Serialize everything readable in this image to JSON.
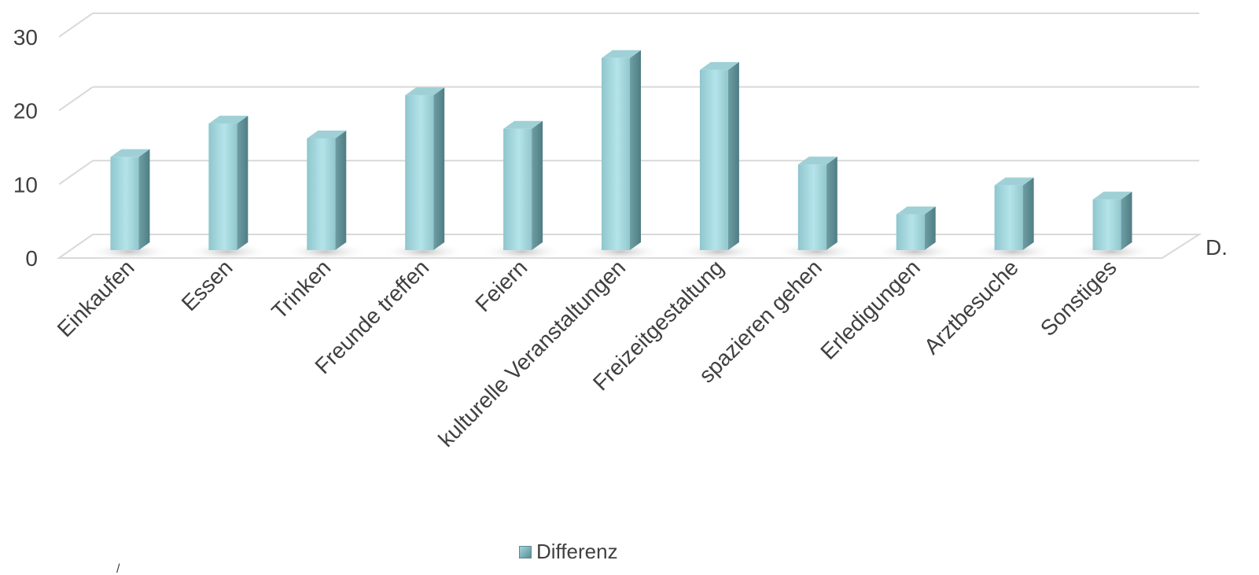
{
  "chart_data": {
    "type": "bar",
    "style": "3d-column",
    "categories": [
      "Einkaufen",
      "Essen",
      "Trinken",
      "Freunde treffen",
      "Feiern",
      "kulturelle Veranstaltungen",
      "Freizeitgestaltung",
      "spazieren gehen",
      "Erledigungen",
      "Arztbesuche",
      "Sonstiges"
    ],
    "series": [
      {
        "name": "Differenz",
        "values": [
          12.5,
          17,
          15,
          20.8,
          16.3,
          25.8,
          24.2,
          11.5,
          4.8,
          8.7,
          6.8
        ]
      }
    ],
    "y_ticks": [
      0,
      10,
      20,
      30
    ],
    "ylim": [
      0,
      30
    ],
    "depth_axis_label": "D.",
    "grid": true,
    "legend_position": "bottom",
    "colors": {
      "bar": "#a8dde4",
      "bar_side": "#5f8f95",
      "bar_top": "#9fd0d6",
      "grid": "#d9d9d9",
      "text": "#404040"
    }
  },
  "legend": {
    "label": "Differenz"
  },
  "stray_glyph": "/"
}
